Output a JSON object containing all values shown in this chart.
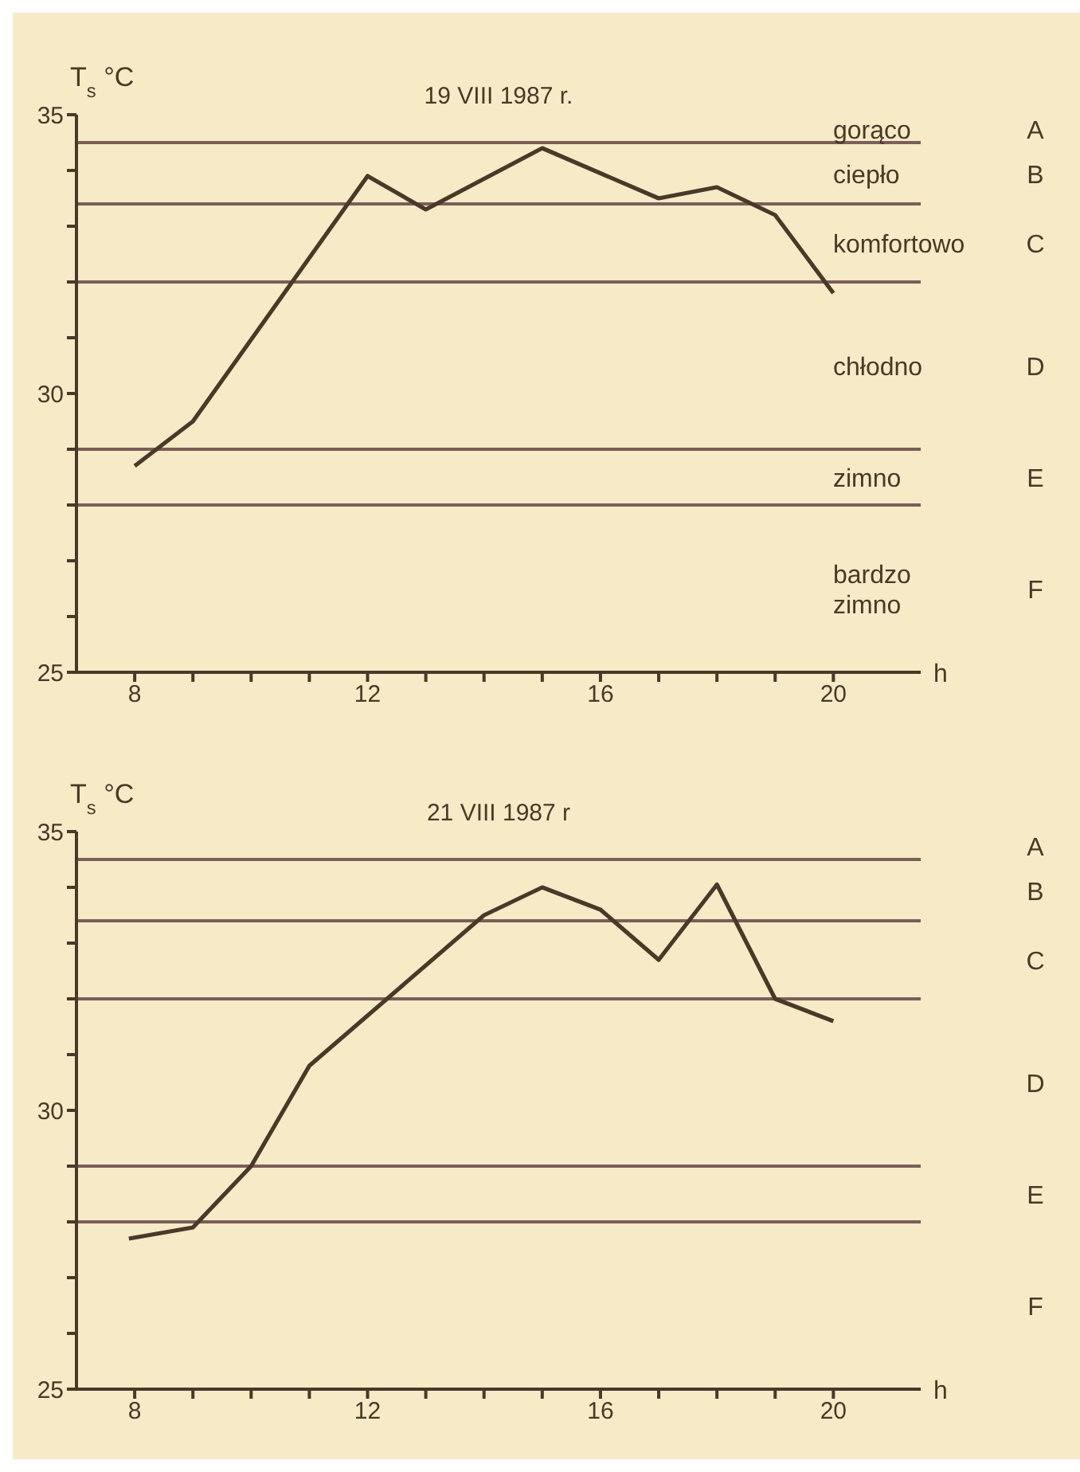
{
  "chart_data": [
    {
      "type": "line",
      "title": "19 VIII 1987 r.",
      "xlabel": "h",
      "ylabel": "T$_{s}$ °C",
      "x": [
        8,
        9,
        12,
        13,
        15,
        17,
        18,
        19,
        20
      ],
      "series": [
        {
          "color": "#4a3828",
          "values": [
            28.7,
            29.5,
            33.9,
            33.3,
            34.4,
            33.5,
            33.7,
            33.2,
            31.8
          ]
        }
      ],
      "xlim": [
        7,
        21.5
      ],
      "ylim": [
        25,
        35
      ],
      "xticks": [
        8,
        {
          "value": 9,
          "label": null
        },
        {
          "value": 10,
          "label": null
        },
        {
          "value": 11,
          "label": null
        },
        12,
        {
          "value": 13,
          "label": null
        },
        {
          "value": 14,
          "label": null
        },
        {
          "value": 15,
          "label": null
        },
        16,
        {
          "value": 17,
          "label": null
        },
        {
          "value": 18,
          "label": null
        },
        {
          "value": 19,
          "label": null
        },
        20
      ],
      "yticks": [
        25,
        {
          "value": 26,
          "label": null
        },
        {
          "value": 27,
          "label": null
        },
        {
          "value": 28,
          "label": null
        },
        {
          "value": 29,
          "label": null
        },
        30,
        {
          "value": 31,
          "label": null
        },
        {
          "value": 32,
          "label": null
        },
        {
          "value": 33,
          "label": null
        },
        {
          "value": 34,
          "label": null
        },
        35
      ],
      "ref_lines": [
        {
          "axis": "y",
          "value": 34.5,
          "color": "#7a5e58"
        },
        {
          "axis": "y",
          "value": 33.4,
          "color": "#7a5e58"
        },
        {
          "axis": "y",
          "value": 32,
          "color": "#7a5e58"
        },
        {
          "axis": "y",
          "value": 29,
          "color": "#7a5e58"
        },
        {
          "axis": "y",
          "value": 28,
          "color": "#7a5e58"
        }
      ],
      "annotations": [
        "gorąco",
        "A",
        "ciepło",
        "B",
        "komfortowo",
        "C",
        "chłodno",
        "D",
        "zimno",
        "E",
        "bardzo zimno",
        "F"
      ],
      "grid": false,
      "legend": false,
      "marker": "none",
      "line_style": "solid"
    },
    {
      "type": "line",
      "title": "21 VIII 1987 r",
      "xlabel": "h",
      "ylabel": "T$_{s}$ °C",
      "x": [
        7.9,
        9,
        10,
        11,
        12,
        14,
        15,
        16,
        17,
        18,
        19,
        20
      ],
      "series": [
        {
          "color": "#4a3828",
          "values": [
            27.7,
            27.9,
            29,
            30.8,
            31.7,
            33.5,
            34,
            33.6,
            32.7,
            34.05,
            32,
            31.6
          ]
        }
      ],
      "xlim": [
        7,
        21.5
      ],
      "ylim": [
        25,
        35
      ],
      "xticks": [
        8,
        {
          "value": 9,
          "label": null
        },
        {
          "value": 10,
          "label": null
        },
        {
          "value": 11,
          "label": null
        },
        12,
        {
          "value": 13,
          "label": null
        },
        {
          "value": 14,
          "label": null
        },
        {
          "value": 15,
          "label": null
        },
        16,
        {
          "value": 17,
          "label": null
        },
        {
          "value": 18,
          "label": null
        },
        {
          "value": 19,
          "label": null
        },
        20
      ],
      "yticks": [
        25,
        {
          "value": 26,
          "label": null
        },
        {
          "value": 27,
          "label": null
        },
        {
          "value": 28,
          "label": null
        },
        {
          "value": 29,
          "label": null
        },
        30,
        {
          "value": 31,
          "label": null
        },
        {
          "value": 32,
          "label": null
        },
        {
          "value": 33,
          "label": null
        },
        {
          "value": 34,
          "label": null
        },
        35
      ],
      "ref_lines": [
        {
          "axis": "y",
          "value": 34.5,
          "color": "#7a5e58"
        },
        {
          "axis": "y",
          "value": 33.4,
          "color": "#7a5e58"
        },
        {
          "axis": "y",
          "value": 32,
          "color": "#7a5e58"
        },
        {
          "axis": "y",
          "value": 29,
          "color": "#7a5e58"
        },
        {
          "axis": "y",
          "value": 28,
          "color": "#7a5e58"
        }
      ],
      "annotations": [
        "A",
        "B",
        "C",
        "D",
        "E",
        "F"
      ],
      "grid": false,
      "legend": false,
      "marker": "none",
      "line_style": "solid"
    }
  ]
}
